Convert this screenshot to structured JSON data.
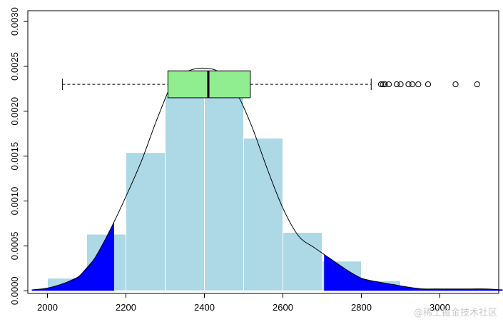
{
  "chart_data": {
    "type": "bar",
    "title": "",
    "xlabel": "",
    "ylabel": "",
    "xlim": [
      1950,
      3150
    ],
    "ylim": [
      -3e-05,
      0.00312
    ],
    "grid": false,
    "legend": "none",
    "x_ticks": [
      2000,
      2200,
      2400,
      2600,
      2800,
      3000
    ],
    "x_tick_labels": [
      "2000",
      "2200",
      "2400",
      "2600",
      "2800",
      "3000"
    ],
    "y_ticks": [
      0.0,
      0.0005,
      0.001,
      0.0015,
      0.002,
      0.0025,
      0.003
    ],
    "y_tick_labels": [
      "0.0000",
      "0.0005",
      "0.0010",
      "0.0015",
      "0.0020",
      "0.0025",
      "0.0030"
    ],
    "histogram": {
      "bin_edges": [
        2000,
        2100,
        2200,
        2300,
        2400,
        2500,
        2600,
        2700,
        2800,
        2900,
        3000,
        3100
      ],
      "densities": [
        0.00014,
        0.00063,
        0.00154,
        0.00217,
        0.00217,
        0.0017,
        0.00065,
        0.00033,
        0.00011,
        3e-05,
        2e-05
      ],
      "fill_color": "#add8e6",
      "edge_color": "#ffffff"
    },
    "density_curve": {
      "color": "#000000",
      "x": [
        1960,
        2000,
        2040,
        2080,
        2120,
        2160,
        2200,
        2240,
        2280,
        2320,
        2360,
        2400,
        2440,
        2480,
        2520,
        2560,
        2600,
        2640,
        2680,
        2720,
        2760,
        2800,
        2840,
        2880,
        2920,
        2960,
        3000,
        3040,
        3080,
        3120,
        3160
      ],
      "y": [
        1e-05,
        3e-05,
        8e-05,
        0.00016,
        0.00036,
        0.00068,
        0.00105,
        0.00145,
        0.00192,
        0.00232,
        0.00245,
        0.00248,
        0.00243,
        0.00222,
        0.00184,
        0.00136,
        0.00092,
        0.00061,
        0.00048,
        0.00036,
        0.00024,
        0.00014,
        0.0001,
        7e-05,
        4e-05,
        2e-05,
        2e-05,
        2e-05,
        2e-05,
        2e-05,
        1e-05
      ]
    },
    "tail_fill": {
      "color": "#0000ff",
      "lower_cutoff": 2170,
      "upper_cutoff": 2705
    },
    "boxplot": {
      "y_position": 0.0023,
      "box_height": 0.0003,
      "whisker_low": 2038,
      "q1": 2307,
      "median": 2410,
      "q3": 2517,
      "whisker_high": 2825,
      "outliers": [
        2850,
        2855,
        2860,
        2870,
        2890,
        2900,
        2920,
        2930,
        2945,
        2970,
        3040,
        3095
      ],
      "box_color": "#90ee90",
      "line_color": "#000000"
    }
  },
  "watermark": "@稀土掘金技术社区"
}
